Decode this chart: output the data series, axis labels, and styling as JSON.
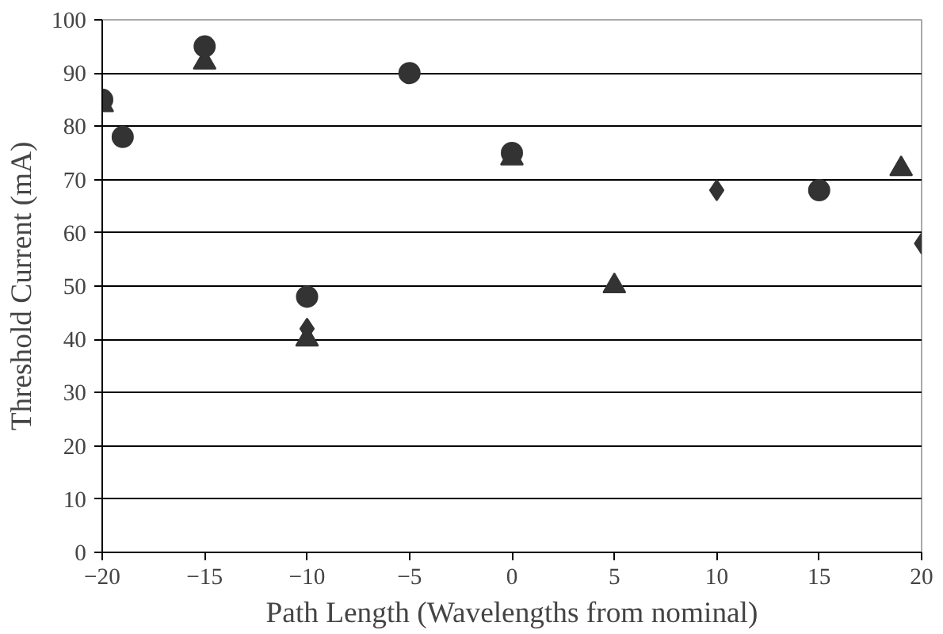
{
  "chart_data": {
    "type": "scatter",
    "xlabel": "Path Length (Wavelengths from nominal)",
    "ylabel": "Threshold Current (mA)",
    "xlim": [
      -20,
      20
    ],
    "xticks": [
      -20,
      -15,
      -10,
      -5,
      0,
      5,
      10,
      15,
      20
    ],
    "ylim": [
      0,
      100
    ],
    "yticks": [
      0,
      10,
      20,
      30,
      40,
      50,
      60,
      70,
      80,
      90,
      100
    ],
    "grid": "y",
    "series": [
      {
        "color": "#333333",
        "marker": "circle",
        "x": [
          -20,
          -19,
          -15,
          -10,
          -5,
          0,
          15
        ],
        "values": [
          85,
          78,
          95,
          48,
          90,
          75,
          68
        ]
      },
      {
        "color": "#333333",
        "marker": "triangle",
        "x": [
          -20,
          -15,
          -10,
          0,
          5,
          19
        ],
        "values": [
          84,
          92,
          40,
          74,
          50,
          72
        ]
      },
      {
        "color": "#333333",
        "marker": "diamond",
        "x": [
          -10,
          10,
          20
        ],
        "values": [
          42,
          68,
          58
        ]
      }
    ]
  }
}
